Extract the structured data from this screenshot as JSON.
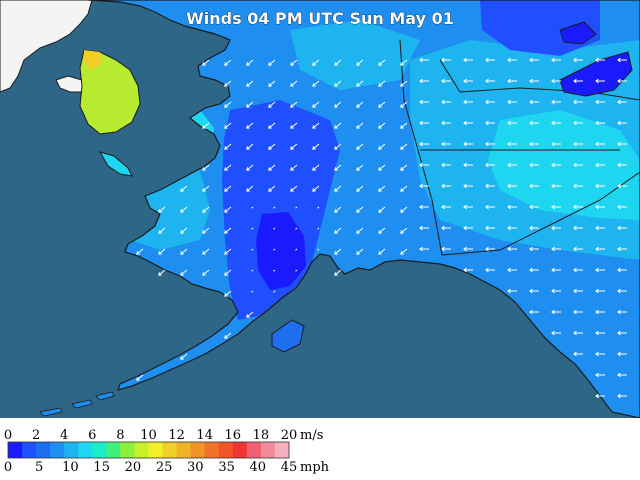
{
  "title": "Winds 04 PM UTC Sun May 01",
  "colors": {
    "ocean": "#2e6688",
    "foreign_land": "#f4f4f4",
    "border": "#1b1b1b",
    "arrow": "#ffffff"
  },
  "legend": {
    "ms_label": "m/s",
    "mph_label": "mph",
    "ms_ticks": [
      "0",
      "2",
      "4",
      "6",
      "8",
      "10",
      "12",
      "14",
      "16",
      "18",
      "20"
    ],
    "mph_ticks": [
      "0",
      "5",
      "10",
      "15",
      "20",
      "25",
      "30",
      "35",
      "40",
      "45"
    ],
    "colors": [
      "#1a1aff",
      "#1f4fff",
      "#1e6ff0",
      "#1e8ef0",
      "#1eb4f0",
      "#1ed6f0",
      "#18eecc",
      "#40f07a",
      "#8ef03e",
      "#c8f028",
      "#f0f028",
      "#f0d028",
      "#f0b428",
      "#f09428",
      "#f07428",
      "#f05428",
      "#f03434",
      "#f06070",
      "#f08c9a",
      "#f4b0bc"
    ]
  }
}
